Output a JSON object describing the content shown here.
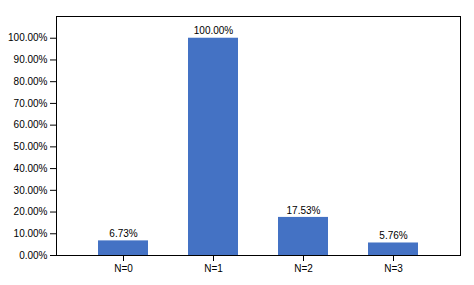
{
  "chart_data": {
    "type": "bar",
    "categories": [
      "N=0",
      "N=1",
      "N=2",
      "N=3"
    ],
    "values": [
      6.73,
      100.0,
      17.53,
      5.76
    ],
    "value_labels": [
      "6.73%",
      "100.00%",
      "17.53%",
      "5.76%"
    ],
    "data_labels": true,
    "color": "#4472C4",
    "ylim": [
      0,
      110
    ],
    "yticks": [
      {
        "value": 0,
        "label": "0.00%"
      },
      {
        "value": 10,
        "label": "10.00%"
      },
      {
        "value": 20,
        "label": "20.00%"
      },
      {
        "value": 30,
        "label": "30.00%"
      },
      {
        "value": 40,
        "label": "40.00%"
      },
      {
        "value": 50,
        "label": "50.00%"
      },
      {
        "value": 60,
        "label": "60.00%"
      },
      {
        "value": 70,
        "label": "70.00%"
      },
      {
        "value": 80,
        "label": "80.00%"
      },
      {
        "value": 90,
        "label": "90.00%"
      },
      {
        "value": 100,
        "label": "100.00%"
      }
    ],
    "grid": false
  }
}
